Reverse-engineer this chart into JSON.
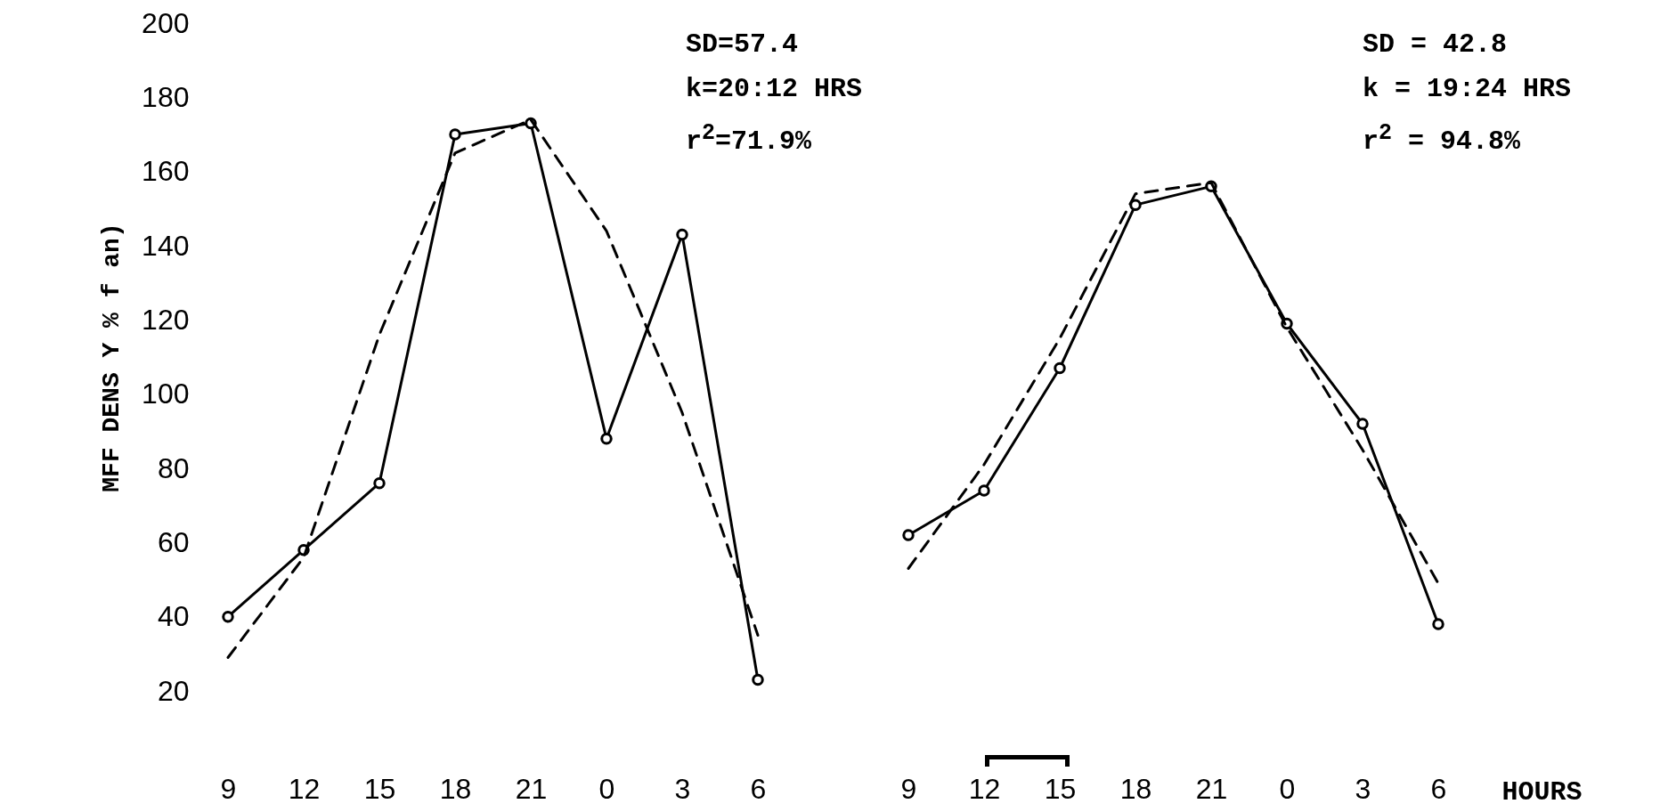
{
  "chart_data": [
    {
      "type": "line",
      "ylabel": "MFF DENS Y % f an)",
      "categories": [
        "9",
        "12",
        "15",
        "18",
        "21",
        "0",
        "3",
        "6"
      ],
      "ylim": [
        20,
        200
      ],
      "yticks": [
        20,
        40,
        60,
        80,
        100,
        120,
        140,
        160,
        180,
        200
      ],
      "grid": false,
      "series": [
        {
          "color": "#000000",
          "line_style": "solid",
          "marker": "circle",
          "values": [
            40,
            58,
            76,
            170,
            173,
            88,
            143,
            23
          ]
        },
        {
          "color": "#000000",
          "line_style": "dashed",
          "marker": "none",
          "values": [
            29,
            56,
            116,
            165,
            174,
            144,
            95,
            35
          ]
        }
      ],
      "annotations": [
        "SD=57.4",
        "k=20:12 HRS",
        "r$^{2}$=71.9%"
      ]
    },
    {
      "type": "line",
      "xlabel": "HOURS",
      "categories": [
        "9",
        "12",
        "15",
        "18",
        "21",
        "0",
        "3",
        "6"
      ],
      "ylim": [
        20,
        200
      ],
      "yticks": [
        20,
        40,
        60,
        80,
        100,
        120,
        140,
        160,
        180,
        200
      ],
      "tick_labels": "x",
      "grid": false,
      "series": [
        {
          "color": "#000000",
          "line_style": "solid",
          "marker": "circle",
          "values": [
            62,
            74,
            107,
            151,
            156,
            119,
            92,
            38
          ]
        },
        {
          "color": "#000000",
          "line_style": "dashed",
          "marker": "none",
          "values": [
            53,
            81,
            115,
            154,
            157,
            118,
            85,
            49
          ]
        }
      ],
      "annotations": [
        "SD = 42.8",
        "k = 19:24 HRS",
        "r$^{2}$ = 94.8%"
      ]
    }
  ]
}
